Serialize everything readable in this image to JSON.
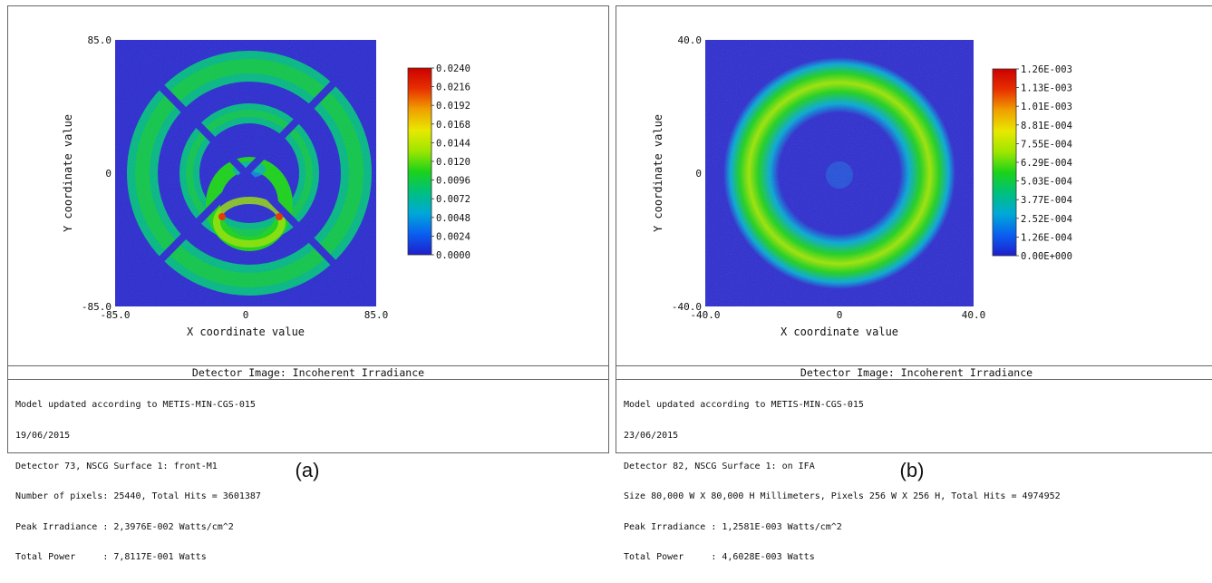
{
  "panels": [
    {
      "caption": "(a)",
      "title": "Detector Image: Incoherent Irradiance",
      "info": [
        "Model updated according to METIS-MIN-CGS-015",
        "19/06/2015",
        "Detector 73, NSCG Surface 1: front-M1",
        "Number of pixels: 25440, Total Hits = 3601387",
        "Peak Irradiance : 2,3976E-002 Watts/cm^2",
        "Total Power     : 7,8117E-001 Watts"
      ]
    },
    {
      "caption": "(b)",
      "title": "Detector Image: Incoherent Irradiance",
      "info": [
        "Model updated according to METIS-MIN-CGS-015",
        "23/06/2015",
        "Detector 82, NSCG Surface 1: on IFA",
        "Size 80,000 W X 80,000 H Millimeters, Pixels 256 W X 256 H, Total Hits = 4974952",
        "Peak Irradiance : 1,2581E-003 Watts/cm^2",
        "Total Power     : 4,6028E-003 Watts"
      ]
    }
  ],
  "colors": {
    "background": "#2a2ad0",
    "colormap": [
      "#1e1ecc",
      "#0a5ff0",
      "#00a8d8",
      "#00c080",
      "#1ad21a",
      "#9ee600",
      "#e8e800",
      "#f0a000",
      "#e83000",
      "#cc0000"
    ]
  },
  "chart_data": [
    {
      "type": "heatmap",
      "title": "",
      "xlabel": "X coordinate value",
      "ylabel": "Y coordinate value",
      "xlim": [
        -85.0,
        85.0
      ],
      "ylim": [
        -85.0,
        85.0
      ],
      "x_ticks": [
        "-85.0",
        "0",
        "85.0"
      ],
      "y_ticks": [
        "85.0",
        "0",
        "-85.0"
      ],
      "colorbar": {
        "min": 0.0,
        "max": 0.024,
        "labels": [
          "0.0240",
          "0.0216",
          "0.0192",
          "0.0168",
          "0.0144",
          "0.0120",
          "0.0096",
          "0.0072",
          "0.0048",
          "0.0024",
          "0.0000"
        ]
      }
    },
    {
      "type": "heatmap",
      "title": "",
      "xlabel": "X coordinate value",
      "ylabel": "Y coordinate value",
      "xlim": [
        -40.0,
        40.0
      ],
      "ylim": [
        -40.0,
        40.0
      ],
      "x_ticks": [
        "-40.0",
        "0",
        "40.0"
      ],
      "y_ticks": [
        "40.0",
        "0",
        "-40.0"
      ],
      "colorbar": {
        "min": 0.0,
        "max": 0.00126,
        "labels": [
          "1.26E-003",
          "1.13E-003",
          "1.01E-003",
          "8.81E-004",
          "7.55E-004",
          "6.29E-004",
          "5.03E-004",
          "3.77E-004",
          "2.52E-004",
          "1.26E-004",
          "0.00E+000"
        ]
      }
    }
  ]
}
